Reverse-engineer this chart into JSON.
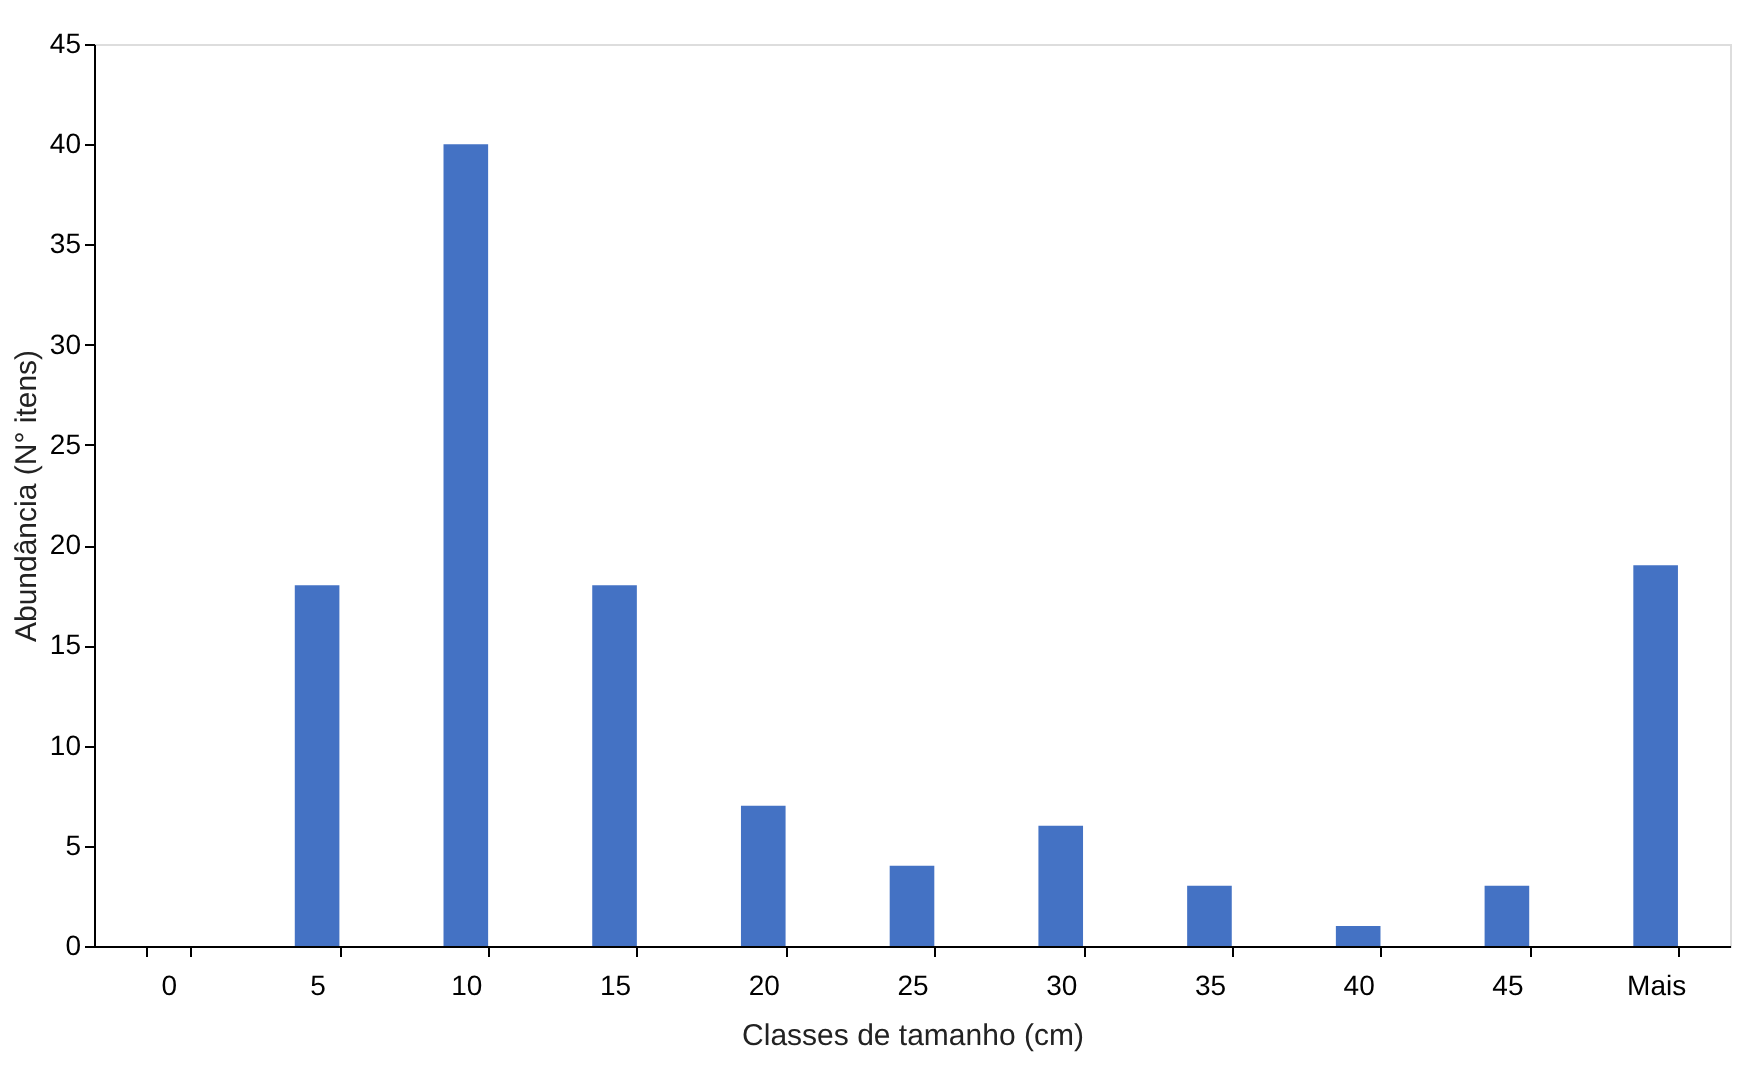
{
  "chart_data": {
    "type": "bar",
    "xlabel": "Classes de tamanho (cm)",
    "ylabel": "Abundância (N° itens)",
    "categories": [
      "0",
      "5",
      "10",
      "15",
      "20",
      "25",
      "30",
      "35",
      "40",
      "45",
      "Mais"
    ],
    "values": [
      0,
      18,
      40,
      18,
      7,
      4,
      6,
      3,
      1,
      3,
      19
    ],
    "color": "#4472c4",
    "ylim": [
      0,
      45
    ],
    "yticks": [
      0,
      5,
      10,
      15,
      20,
      25,
      30,
      35,
      40,
      45
    ],
    "grid": false
  }
}
